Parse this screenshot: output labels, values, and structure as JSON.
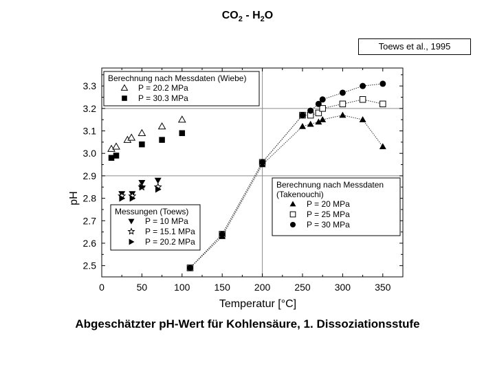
{
  "header": {
    "title_co2": "CO",
    "title_sub1": "2",
    "title_sep": " - ",
    "title_h": "H",
    "title_sub2": "2",
    "title_o": "O"
  },
  "source": "Toews et al., 1995",
  "caption": "Abgeschätzter pH-Wert für Kohlensäure, 1. Dissoziationsstufe",
  "chart_data": {
    "type": "scatter",
    "xlabel": "Temperatur [°C]",
    "ylabel": "pH",
    "xlim": [
      0,
      375
    ],
    "ylim": [
      2.45,
      3.38
    ],
    "x_ticks": [
      0,
      50,
      100,
      150,
      200,
      250,
      300,
      350
    ],
    "y_ticks": [
      2.5,
      2.6,
      2.7,
      2.8,
      2.9,
      3.0,
      3.1,
      3.2,
      3.3
    ],
    "legends": [
      {
        "title": "Berechnung nach Messdaten (Wiebe)",
        "entries": [
          {
            "label": "P = 20.2 MPa",
            "marker": "triangle-open"
          },
          {
            "label": "P = 30.3 MPa",
            "marker": "square-filled"
          }
        ]
      },
      {
        "title": "Messungen (Toews)",
        "entries": [
          {
            "label": "P = 10 MPa",
            "marker": "triangle-down-filled"
          },
          {
            "label": "P = 15.1 MPa",
            "marker": "star-open"
          },
          {
            "label": "P = 20.2 MPa",
            "marker": "triangle-right-filled"
          }
        ]
      },
      {
        "title": "Berechnung nach Messdaten",
        "subtitle": "(Takenouchi)",
        "entries": [
          {
            "label": "P = 20 MPa",
            "marker": "triangle-filled"
          },
          {
            "label": "P = 25 MPa",
            "marker": "square-open"
          },
          {
            "label": "P = 30 MPa",
            "marker": "circle-filled"
          }
        ]
      }
    ],
    "series": [
      {
        "marker": "triangle-open",
        "connected": false,
        "points": [
          [
            12,
            3.02
          ],
          [
            18,
            3.03
          ],
          [
            32,
            3.06
          ],
          [
            37,
            3.07
          ],
          [
            50,
            3.09
          ],
          [
            75,
            3.12
          ],
          [
            100,
            3.15
          ]
        ]
      },
      {
        "marker": "square-filled",
        "connected": false,
        "points": [
          [
            12,
            2.98
          ],
          [
            18,
            2.99
          ],
          [
            50,
            3.04
          ],
          [
            75,
            3.06
          ],
          [
            100,
            3.09
          ]
        ]
      },
      {
        "marker": "triangle-down-filled",
        "connected": false,
        "points": [
          [
            25,
            2.82
          ],
          [
            38,
            2.82
          ],
          [
            50,
            2.87
          ],
          [
            70,
            2.88
          ]
        ]
      },
      {
        "marker": "star-open",
        "connected": false,
        "points": [
          [
            25,
            2.81
          ],
          [
            38,
            2.81
          ],
          [
            50,
            2.85
          ],
          [
            70,
            2.85
          ]
        ]
      },
      {
        "marker": "triangle-right-filled",
        "connected": false,
        "points": [
          [
            25,
            2.8
          ],
          [
            38,
            2.8
          ],
          [
            50,
            2.85
          ],
          [
            70,
            2.84
          ]
        ]
      },
      {
        "marker": "triangle-filled",
        "connected": true,
        "points": [
          [
            110,
            2.49
          ],
          [
            150,
            2.63
          ],
          [
            200,
            2.95
          ],
          [
            250,
            3.12
          ],
          [
            260,
            3.13
          ],
          [
            270,
            3.14
          ],
          [
            275,
            3.15
          ],
          [
            300,
            3.17
          ],
          [
            325,
            3.15
          ],
          [
            350,
            3.03
          ]
        ]
      },
      {
        "marker": "square-open",
        "connected": true,
        "points": [
          [
            110,
            2.49
          ],
          [
            150,
            2.64
          ],
          [
            200,
            2.96
          ],
          [
            250,
            3.17
          ],
          [
            260,
            3.17
          ],
          [
            270,
            3.18
          ],
          [
            275,
            3.2
          ],
          [
            300,
            3.22
          ],
          [
            325,
            3.24
          ],
          [
            350,
            3.22
          ]
        ]
      },
      {
        "marker": "circle-filled",
        "connected": true,
        "points": [
          [
            110,
            2.49
          ],
          [
            150,
            2.64
          ],
          [
            200,
            2.96
          ],
          [
            250,
            3.17
          ],
          [
            260,
            3.19
          ],
          [
            270,
            3.22
          ],
          [
            275,
            3.24
          ],
          [
            300,
            3.27
          ],
          [
            325,
            3.3
          ],
          [
            350,
            3.31
          ]
        ]
      }
    ]
  }
}
